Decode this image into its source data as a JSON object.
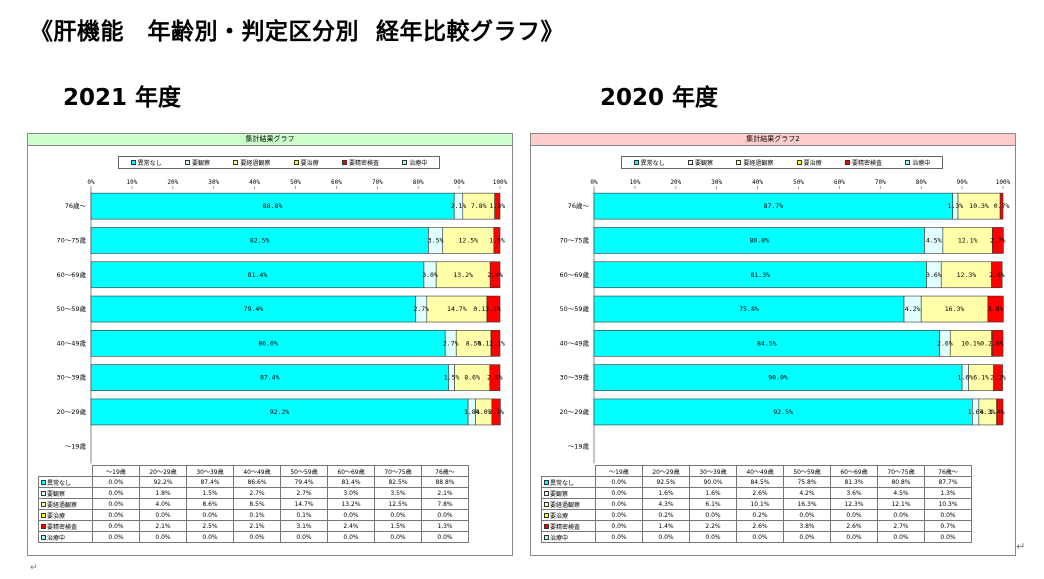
{
  "page": {
    "title": "《肝機能　年齢別・判定区分別  経年比較グラフ》",
    "colors": [
      "#00FFFF",
      "#E0FFFF",
      "#FFFFAA",
      "#FFFF00",
      "#FF0000",
      "#66FFFF"
    ],
    "label_colors": [
      "#00FFFF",
      "#DDFFFF",
      "#FFFF99",
      "#FFFF00",
      "#FF0000",
      "#99FFFF"
    ]
  },
  "chart_data": [
    {
      "type": "bar",
      "orientation": "horizontal",
      "stacked": "percent",
      "year_label": "2021 年度",
      "title": "集計結果グラフ",
      "title_bg": "#ccffcc",
      "xlim": [
        0,
        100
      ],
      "xticks": [
        "0%",
        "10%",
        "20%",
        "30%",
        "40%",
        "50%",
        "60%",
        "70%",
        "80%",
        "90%",
        "100%"
      ],
      "categories": [
        "76歳～",
        "70～75歳",
        "60～69歳",
        "50～59歳",
        "40～49歳",
        "30～39歳",
        "20～29歳",
        "～19歳"
      ],
      "series": [
        {
          "name": "異常なし",
          "values": [
            88.8,
            82.5,
            81.4,
            79.4,
            86.6,
            87.4,
            92.2,
            0
          ]
        },
        {
          "name": "要観察",
          "values": [
            2.1,
            3.5,
            3.0,
            2.7,
            2.7,
            1.5,
            1.8,
            0
          ]
        },
        {
          "name": "要経過観察",
          "values": [
            7.8,
            12.5,
            13.2,
            14.7,
            8.5,
            8.6,
            4.0,
            0
          ]
        },
        {
          "name": "要治療",
          "values": [
            0,
            0,
            0,
            0.1,
            0.1,
            0,
            0,
            0
          ]
        },
        {
          "name": "要精密検査",
          "values": [
            1.3,
            1.5,
            2.4,
            3.1,
            2.1,
            2.5,
            2.1,
            0
          ]
        },
        {
          "name": "治療中",
          "values": [
            0,
            0,
            0,
            0,
            0,
            0,
            0,
            0
          ]
        }
      ],
      "bar_labels": [
        [
          "88.8%",
          "2.1%",
          "7.8%",
          "1.3%"
        ],
        [
          "82.5%",
          "3.5%",
          "12.5%",
          "1.5%"
        ],
        [
          "81.4%",
          "3.0%",
          "13.2%",
          "2.4%"
        ],
        [
          "79.4%",
          "2.7%",
          "14.7%",
          "0.13.1%"
        ],
        [
          "86.6%",
          "2.7%",
          "8.5%",
          "0.12.1%"
        ],
        [
          "87.4%",
          "1.5%",
          "8.6%",
          "2.5%"
        ],
        [
          "92.2%",
          "1.8%",
          "4.0%",
          "2.1%"
        ],
        []
      ],
      "table": {
        "headers": [
          "～19歳",
          "20～29歳",
          "30～39歳",
          "40～49歳",
          "50～59歳",
          "60～69歳",
          "70～75歳",
          "76歳～"
        ],
        "rows": [
          {
            "label": "異常なし",
            "values": [
              "0.0%",
              "92.2%",
              "87.4%",
              "86.6%",
              "79.4%",
              "81.4%",
              "82.5%",
              "88.8%"
            ]
          },
          {
            "label": "要観察",
            "values": [
              "0.0%",
              "1.8%",
              "1.5%",
              "2.7%",
              "2.7%",
              "3.0%",
              "3.5%",
              "2.1%"
            ]
          },
          {
            "label": "要経過観察",
            "values": [
              "0.0%",
              "4.0%",
              "8.6%",
              "8.5%",
              "14.7%",
              "13.2%",
              "12.5%",
              "7.8%"
            ]
          },
          {
            "label": "要治療",
            "values": [
              "0.0%",
              "0.0%",
              "0.0%",
              "0.1%",
              "0.1%",
              "0.0%",
              "0.0%",
              "0.0%"
            ]
          },
          {
            "label": "要精密検査",
            "values": [
              "0.0%",
              "2.1%",
              "2.5%",
              "2.1%",
              "3.1%",
              "2.4%",
              "1.5%",
              "1.3%"
            ]
          },
          {
            "label": "治療中",
            "values": [
              "0.0%",
              "0.0%",
              "0.0%",
              "0.0%",
              "0.0%",
              "0.0%",
              "0.0%",
              "0.0%"
            ]
          }
        ]
      }
    },
    {
      "type": "bar",
      "orientation": "horizontal",
      "stacked": "percent",
      "year_label": "2020 年度",
      "title": "集計結果グラフ2",
      "title_bg": "#ffcccc",
      "xlim": [
        0,
        100
      ],
      "xticks": [
        "0%",
        "10%",
        "20%",
        "30%",
        "40%",
        "50%",
        "60%",
        "70%",
        "80%",
        "90%",
        "100%"
      ],
      "categories": [
        "76歳～",
        "70～75歳",
        "60～69歳",
        "50～59歳",
        "40～49歳",
        "30～39歳",
        "20～29歳",
        "～19歳"
      ],
      "series": [
        {
          "name": "異常なし",
          "values": [
            87.7,
            80.8,
            81.3,
            75.8,
            84.5,
            90.0,
            92.5,
            0
          ]
        },
        {
          "name": "要観察",
          "values": [
            1.3,
            4.5,
            3.6,
            4.2,
            2.6,
            1.6,
            1.6,
            0
          ]
        },
        {
          "name": "要経過観察",
          "values": [
            10.3,
            12.1,
            12.3,
            16.3,
            10.1,
            6.1,
            4.3,
            0
          ]
        },
        {
          "name": "要治療",
          "values": [
            0,
            0,
            0,
            0,
            0.2,
            0,
            0.2,
            0
          ]
        },
        {
          "name": "要精密検査",
          "values": [
            0.7,
            2.7,
            2.6,
            3.8,
            2.6,
            2.2,
            1.4,
            0
          ]
        },
        {
          "name": "治療中",
          "values": [
            0,
            0,
            0,
            0,
            0,
            0,
            0,
            0
          ]
        }
      ],
      "bar_labels": [
        [
          "87.7%",
          "1.3%",
          "10.3%",
          "0.7%"
        ],
        [
          "80.8%",
          "4.5%",
          "12.1%",
          "2.7%"
        ],
        [
          "81.3%",
          "3.6%",
          "12.3%",
          "2.6%"
        ],
        [
          "75.8%",
          "4.2%",
          "16.3%",
          "3.8%"
        ],
        [
          "84.5%",
          "2.6%",
          "10.1%",
          "0.2.6%"
        ],
        [
          "90.0%",
          "1.6%",
          "6.1%",
          "2.2%"
        ],
        [
          "92.5%",
          "1.6%",
          "4.3%",
          "1.4%"
        ],
        []
      ],
      "table": {
        "headers": [
          "～19歳",
          "20～29歳",
          "30～39歳",
          "40～49歳",
          "50～59歳",
          "60～69歳",
          "70～75歳",
          "76歳～"
        ],
        "rows": [
          {
            "label": "異常なし",
            "values": [
              "0.0%",
              "92.5%",
              "90.0%",
              "84.5%",
              "75.8%",
              "81.3%",
              "80.8%",
              "87.7%"
            ]
          },
          {
            "label": "要観察",
            "values": [
              "0.0%",
              "1.6%",
              "1.6%",
              "2.6%",
              "4.2%",
              "3.6%",
              "4.5%",
              "1.3%"
            ]
          },
          {
            "label": "要経過観察",
            "values": [
              "0.0%",
              "4.3%",
              "6.1%",
              "10.1%",
              "16.3%",
              "12.3%",
              "12.1%",
              "10.3%"
            ]
          },
          {
            "label": "要治療",
            "values": [
              "0.0%",
              "0.2%",
              "0.0%",
              "0.2%",
              "0.0%",
              "0.0%",
              "0.0%",
              "0.0%"
            ]
          },
          {
            "label": "要精密検査",
            "values": [
              "0.0%",
              "1.4%",
              "2.2%",
              "2.6%",
              "3.8%",
              "2.6%",
              "2.7%",
              "0.7%"
            ]
          },
          {
            "label": "治療中",
            "values": [
              "0.0%",
              "0.0%",
              "0.0%",
              "0.0%",
              "0.0%",
              "0.0%",
              "0.0%",
              "0.0%"
            ]
          }
        ]
      }
    }
  ]
}
